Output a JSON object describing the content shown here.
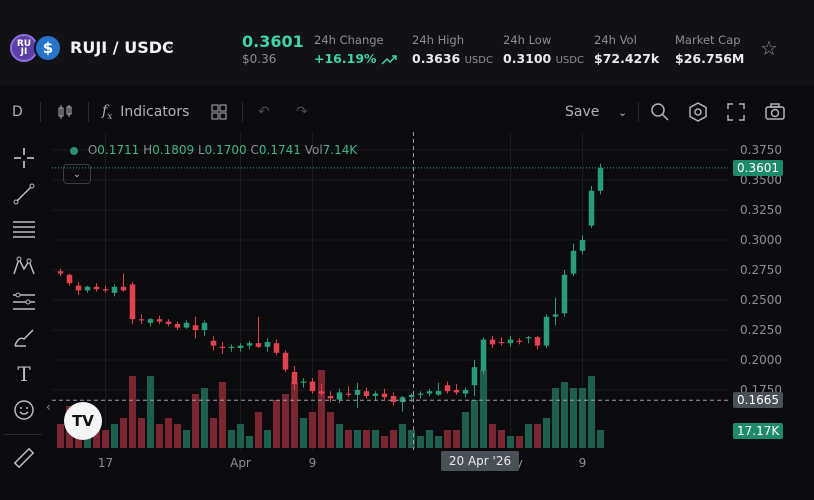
{
  "header": {
    "pair": "RUJI / USDC",
    "icon_ruji_text": "RU JI",
    "icon_usdc_text": "$",
    "price": "0.3601",
    "price_usd": "$0.36",
    "stats": [
      {
        "label": "24h Change",
        "value": "+16.19%",
        "unit": "",
        "positive": true
      },
      {
        "label": "24h High",
        "value": "0.3636",
        "unit": "USDC"
      },
      {
        "label": "24h Low",
        "value": "0.3100",
        "unit": "USDC"
      },
      {
        "label": "24h Vol",
        "value": "$72.427k",
        "unit": ""
      },
      {
        "label": "Market Cap",
        "value": "$26.756M",
        "unit": ""
      }
    ]
  },
  "toolbar": {
    "interval": "D",
    "indicators_label": "Indicators",
    "save_label": "Save"
  },
  "legend": {
    "o_label": "O",
    "o_value": "0.1711",
    "h_label": "H",
    "h_value": "0.1809",
    "l_label": "L",
    "l_value": "0.1700",
    "c_label": "C",
    "c_value": "0.1741",
    "vol_label": "Vol",
    "vol_value": "7.14K"
  },
  "tags": {
    "last_price": "0.3601",
    "crosshair_price": "0.1665",
    "volume": "17.17K",
    "crosshair_time": "20 Apr '26"
  },
  "colors": {
    "up": "#2a9d78",
    "down": "#e0434f",
    "up_vol": "#1e5e4e",
    "down_vol": "#7a2630",
    "accent": "#3fd3a5"
  },
  "chart_data": {
    "type": "candlestick",
    "y_ticks": [
      "0.3750",
      "0.3500",
      "0.3250",
      "0.3000",
      "0.2750",
      "0.2500",
      "0.2250",
      "0.2000",
      "0.1750"
    ],
    "ylim": [
      0.155,
      0.38
    ],
    "x_ticks": [
      {
        "label": "17",
        "index": 5
      },
      {
        "label": "Apr",
        "index": 20
      },
      {
        "label": "9",
        "index": 28
      },
      {
        "label": "May",
        "index": 50
      },
      {
        "label": "9",
        "index": 58
      }
    ],
    "crosshair_index": 39,
    "crosshair_price": 0.1665,
    "last_price": 0.3601,
    "candles": [
      {
        "o": 0.274,
        "h": 0.276,
        "l": 0.27,
        "c": 0.272,
        "v": 4
      },
      {
        "o": 0.271,
        "h": 0.272,
        "l": 0.262,
        "c": 0.264,
        "v": 7
      },
      {
        "o": 0.262,
        "h": 0.265,
        "l": 0.254,
        "c": 0.258,
        "v": 6
      },
      {
        "o": 0.258,
        "h": 0.262,
        "l": 0.256,
        "c": 0.261,
        "v": 5
      },
      {
        "o": 0.261,
        "h": 0.264,
        "l": 0.257,
        "c": 0.259,
        "v": 3
      },
      {
        "o": 0.259,
        "h": 0.262,
        "l": 0.256,
        "c": 0.258,
        "v": 3
      },
      {
        "o": 0.256,
        "h": 0.263,
        "l": 0.253,
        "c": 0.261,
        "v": 4
      },
      {
        "o": 0.261,
        "h": 0.272,
        "l": 0.257,
        "c": 0.258,
        "v": 5
      },
      {
        "o": 0.263,
        "h": 0.265,
        "l": 0.23,
        "c": 0.234,
        "v": 12
      },
      {
        "o": 0.234,
        "h": 0.238,
        "l": 0.23,
        "c": 0.233,
        "v": 5
      },
      {
        "o": 0.231,
        "h": 0.235,
        "l": 0.228,
        "c": 0.234,
        "v": 12
      },
      {
        "o": 0.234,
        "h": 0.237,
        "l": 0.23,
        "c": 0.232,
        "v": 4
      },
      {
        "o": 0.232,
        "h": 0.234,
        "l": 0.228,
        "c": 0.23,
        "v": 5
      },
      {
        "o": 0.23,
        "h": 0.232,
        "l": 0.225,
        "c": 0.227,
        "v": 4
      },
      {
        "o": 0.227,
        "h": 0.233,
        "l": 0.226,
        "c": 0.231,
        "v": 3
      },
      {
        "o": 0.229,
        "h": 0.236,
        "l": 0.218,
        "c": 0.225,
        "v": 9
      },
      {
        "o": 0.225,
        "h": 0.233,
        "l": 0.22,
        "c": 0.231,
        "v": 10
      },
      {
        "o": 0.216,
        "h": 0.22,
        "l": 0.208,
        "c": 0.212,
        "v": 5
      },
      {
        "o": 0.211,
        "h": 0.215,
        "l": 0.205,
        "c": 0.21,
        "v": 11
      },
      {
        "o": 0.21,
        "h": 0.213,
        "l": 0.207,
        "c": 0.211,
        "v": 3
      },
      {
        "o": 0.21,
        "h": 0.214,
        "l": 0.207,
        "c": 0.212,
        "v": 4
      },
      {
        "o": 0.212,
        "h": 0.216,
        "l": 0.209,
        "c": 0.214,
        "v": 2
      },
      {
        "o": 0.214,
        "h": 0.236,
        "l": 0.21,
        "c": 0.211,
        "v": 6
      },
      {
        "o": 0.211,
        "h": 0.218,
        "l": 0.207,
        "c": 0.215,
        "v": 3
      },
      {
        "o": 0.214,
        "h": 0.217,
        "l": 0.204,
        "c": 0.206,
        "v": 8
      },
      {
        "o": 0.206,
        "h": 0.208,
        "l": 0.19,
        "c": 0.192,
        "v": 9
      },
      {
        "o": 0.19,
        "h": 0.195,
        "l": 0.175,
        "c": 0.18,
        "v": 11
      },
      {
        "o": 0.181,
        "h": 0.185,
        "l": 0.177,
        "c": 0.182,
        "v": 5
      },
      {
        "o": 0.182,
        "h": 0.185,
        "l": 0.172,
        "c": 0.174,
        "v": 6
      },
      {
        "o": 0.174,
        "h": 0.18,
        "l": 0.17,
        "c": 0.172,
        "v": 13
      },
      {
        "o": 0.17,
        "h": 0.174,
        "l": 0.165,
        "c": 0.168,
        "v": 6
      },
      {
        "o": 0.167,
        "h": 0.176,
        "l": 0.164,
        "c": 0.173,
        "v": 4
      },
      {
        "o": 0.172,
        "h": 0.178,
        "l": 0.169,
        "c": 0.171,
        "v": 3
      },
      {
        "o": 0.171,
        "h": 0.181,
        "l": 0.16,
        "c": 0.175,
        "v": 3
      },
      {
        "o": 0.174,
        "h": 0.177,
        "l": 0.168,
        "c": 0.17,
        "v": 3
      },
      {
        "o": 0.17,
        "h": 0.174,
        "l": 0.166,
        "c": 0.172,
        "v": 3
      },
      {
        "o": 0.172,
        "h": 0.176,
        "l": 0.167,
        "c": 0.169,
        "v": 2
      },
      {
        "o": 0.17,
        "h": 0.173,
        "l": 0.162,
        "c": 0.165,
        "v": 3
      },
      {
        "o": 0.165,
        "h": 0.17,
        "l": 0.157,
        "c": 0.169,
        "v": 4
      },
      {
        "o": 0.169,
        "h": 0.172,
        "l": 0.165,
        "c": 0.171,
        "v": 3
      },
      {
        "o": 0.171,
        "h": 0.174,
        "l": 0.168,
        "c": 0.172,
        "v": 2
      },
      {
        "o": 0.172,
        "h": 0.176,
        "l": 0.17,
        "c": 0.174,
        "v": 3
      },
      {
        "o": 0.1711,
        "h": 0.1809,
        "l": 0.17,
        "c": 0.1741,
        "v": 2
      },
      {
        "o": 0.179,
        "h": 0.182,
        "l": 0.172,
        "c": 0.174,
        "v": 3
      },
      {
        "o": 0.175,
        "h": 0.18,
        "l": 0.171,
        "c": 0.173,
        "v": 3
      },
      {
        "o": 0.172,
        "h": 0.177,
        "l": 0.169,
        "c": 0.175,
        "v": 6
      },
      {
        "o": 0.179,
        "h": 0.2,
        "l": 0.17,
        "c": 0.194,
        "v": 8
      },
      {
        "o": 0.191,
        "h": 0.219,
        "l": 0.188,
        "c": 0.217,
        "v": 13
      },
      {
        "o": 0.217,
        "h": 0.22,
        "l": 0.21,
        "c": 0.213,
        "v": 4
      },
      {
        "o": 0.215,
        "h": 0.219,
        "l": 0.212,
        "c": 0.214,
        "v": 3
      },
      {
        "o": 0.214,
        "h": 0.22,
        "l": 0.211,
        "c": 0.217,
        "v": 2
      },
      {
        "o": 0.216,
        "h": 0.218,
        "l": 0.213,
        "c": 0.215,
        "v": 2
      },
      {
        "o": 0.218,
        "h": 0.22,
        "l": 0.214,
        "c": 0.219,
        "v": 4
      },
      {
        "o": 0.219,
        "h": 0.22,
        "l": 0.209,
        "c": 0.212,
        "v": 4
      },
      {
        "o": 0.212,
        "h": 0.238,
        "l": 0.21,
        "c": 0.236,
        "v": 5
      },
      {
        "o": 0.236,
        "h": 0.252,
        "l": 0.229,
        "c": 0.238,
        "v": 10
      },
      {
        "o": 0.239,
        "h": 0.275,
        "l": 0.236,
        "c": 0.271,
        "v": 11
      },
      {
        "o": 0.272,
        "h": 0.297,
        "l": 0.27,
        "c": 0.291,
        "v": 10
      },
      {
        "o": 0.291,
        "h": 0.304,
        "l": 0.288,
        "c": 0.3,
        "v": 10
      },
      {
        "o": 0.312,
        "h": 0.345,
        "l": 0.31,
        "c": 0.341,
        "v": 12
      },
      {
        "o": 0.341,
        "h": 0.3636,
        "l": 0.338,
        "c": 0.3601,
        "v": 3
      }
    ]
  }
}
